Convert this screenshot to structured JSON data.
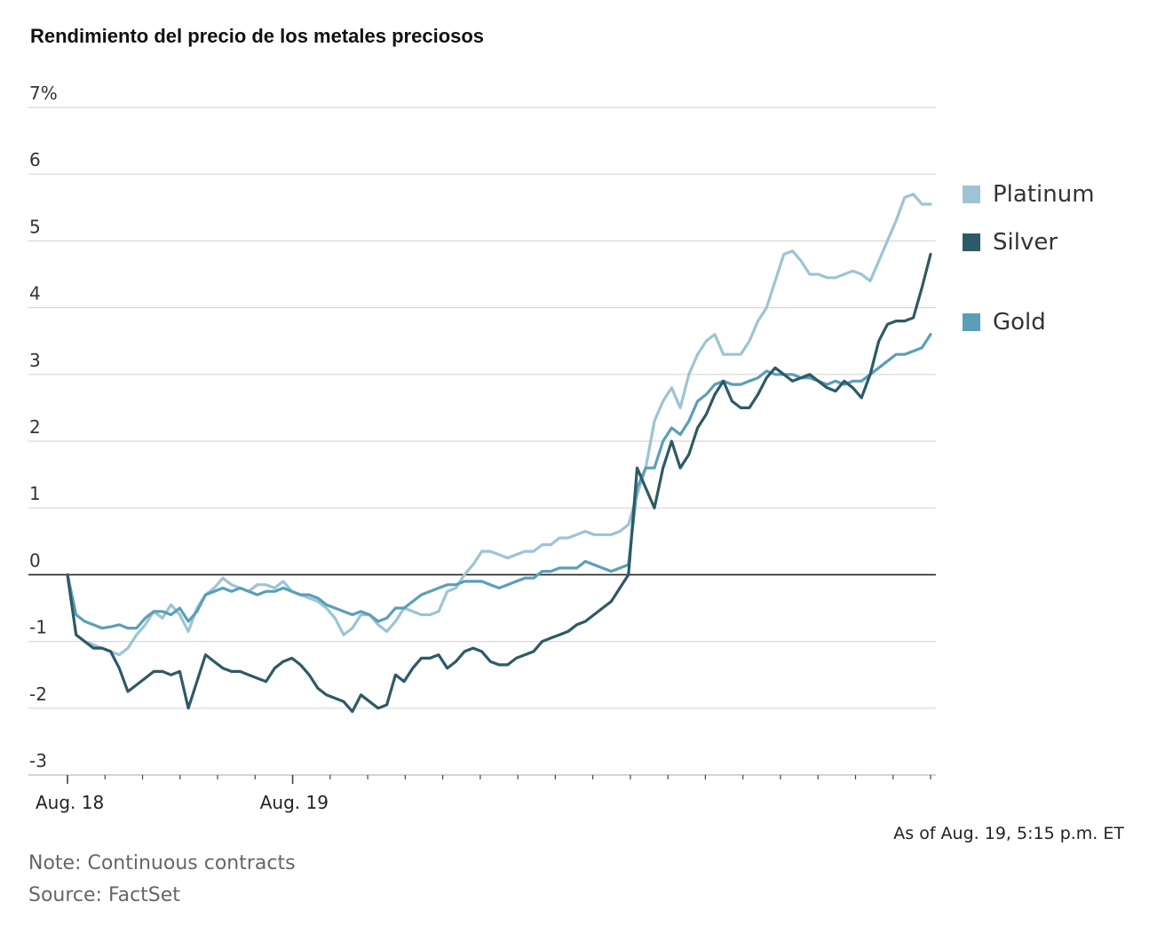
{
  "chart_data": {
    "type": "line",
    "title": "Rendimiento del precio de los metales preciosos",
    "unit": "%",
    "ylim": [
      -3,
      7
    ],
    "yticks": [
      7,
      6,
      5,
      4,
      3,
      2,
      1,
      0,
      -1,
      -2,
      -3
    ],
    "ytick_labels": [
      "7%",
      "6",
      "5",
      "4",
      "3",
      "2",
      "1",
      "0",
      "-1",
      "-2",
      "-3"
    ],
    "xticks": [
      "Aug. 18",
      "Aug. 19"
    ],
    "x_range": [
      0,
      100
    ],
    "x_tick_positions": [
      0,
      26
    ],
    "grid": true,
    "legend_position": "right",
    "series": [
      {
        "name": "Platinum",
        "color": "#9cc4d4",
        "x": [
          0,
          1,
          2,
          3,
          4,
          5,
          6,
          7,
          8,
          9,
          10,
          11,
          12,
          13,
          14,
          15,
          16,
          17,
          18,
          19,
          20,
          21,
          22,
          23,
          24,
          25,
          26,
          27,
          28,
          29,
          30,
          31,
          32,
          33,
          34,
          35,
          36,
          37,
          38,
          39,
          40,
          41,
          42,
          43,
          44,
          45,
          46,
          47,
          48,
          49,
          50,
          51,
          52,
          53,
          54,
          55,
          56,
          57,
          58,
          59,
          60,
          61,
          62,
          63,
          64,
          65,
          66,
          67,
          68,
          69,
          70,
          71,
          72,
          73,
          74,
          75,
          76,
          77,
          78,
          79,
          80,
          81,
          82,
          83,
          84,
          85,
          86,
          87,
          88,
          89,
          90,
          91,
          92,
          93,
          94,
          95,
          96,
          97,
          98,
          99,
          100
        ],
        "values": [
          0.0,
          -0.9,
          -1.0,
          -1.05,
          -1.1,
          -1.15,
          -1.2,
          -1.1,
          -0.9,
          -0.75,
          -0.55,
          -0.65,
          -0.45,
          -0.6,
          -0.85,
          -0.5,
          -0.3,
          -0.2,
          -0.05,
          -0.15,
          -0.2,
          -0.25,
          -0.15,
          -0.15,
          -0.2,
          -0.1,
          -0.25,
          -0.3,
          -0.35,
          -0.4,
          -0.5,
          -0.65,
          -0.9,
          -0.8,
          -0.6,
          -0.6,
          -0.75,
          -0.85,
          -0.7,
          -0.5,
          -0.55,
          -0.6,
          -0.6,
          -0.55,
          -0.25,
          -0.2,
          0.0,
          0.15,
          0.35,
          0.35,
          0.3,
          0.25,
          0.3,
          0.35,
          0.35,
          0.45,
          0.45,
          0.55,
          0.55,
          0.6,
          0.65,
          0.6,
          0.6,
          0.6,
          0.65,
          0.75,
          1.2,
          1.6,
          2.3,
          2.6,
          2.8,
          2.5,
          3.0,
          3.3,
          3.5,
          3.6,
          3.3,
          3.3,
          3.3,
          3.5,
          3.8,
          4.0,
          4.4,
          4.8,
          4.85,
          4.7,
          4.5,
          4.5,
          4.45,
          4.45,
          4.5,
          4.55,
          4.5,
          4.4,
          4.7,
          5.0,
          5.3,
          5.65,
          5.7,
          5.55,
          5.55
        ],
        "dashed_segment": [
          30,
          32
        ]
      },
      {
        "name": "Silver",
        "color": "#2e5a66",
        "x": [
          0,
          1,
          2,
          3,
          4,
          5,
          6,
          7,
          8,
          9,
          10,
          11,
          12,
          13,
          14,
          15,
          16,
          17,
          18,
          19,
          20,
          21,
          22,
          23,
          24,
          25,
          26,
          27,
          28,
          29,
          30,
          31,
          32,
          33,
          34,
          35,
          36,
          37,
          38,
          39,
          40,
          41,
          42,
          43,
          44,
          45,
          46,
          47,
          48,
          49,
          50,
          51,
          52,
          53,
          54,
          55,
          56,
          57,
          58,
          59,
          60,
          61,
          62,
          63,
          64,
          65,
          66,
          67,
          68,
          69,
          70,
          71,
          72,
          73,
          74,
          75,
          76,
          77,
          78,
          79,
          80,
          81,
          82,
          83,
          84,
          85,
          86,
          87,
          88,
          89,
          90,
          91,
          92,
          93,
          94,
          95,
          96,
          97,
          98,
          99,
          100
        ],
        "values": [
          0.0,
          -0.9,
          -1.0,
          -1.1,
          -1.1,
          -1.15,
          -1.4,
          -1.75,
          -1.65,
          -1.55,
          -1.45,
          -1.45,
          -1.5,
          -1.45,
          -2.0,
          -1.6,
          -1.2,
          -1.3,
          -1.4,
          -1.45,
          -1.45,
          -1.5,
          -1.55,
          -1.6,
          -1.4,
          -1.3,
          -1.25,
          -1.35,
          -1.5,
          -1.7,
          -1.8,
          -1.85,
          -1.9,
          -2.05,
          -1.8,
          -1.9,
          -2.0,
          -1.95,
          -1.5,
          -1.6,
          -1.4,
          -1.25,
          -1.25,
          -1.2,
          -1.4,
          -1.3,
          -1.15,
          -1.1,
          -1.15,
          -1.3,
          -1.35,
          -1.35,
          -1.25,
          -1.2,
          -1.15,
          -1.0,
          -0.95,
          -0.9,
          -0.85,
          -0.75,
          -0.7,
          -0.6,
          -0.5,
          -0.4,
          -0.2,
          0.0,
          1.6,
          1.3,
          1.0,
          1.6,
          2.0,
          1.6,
          1.8,
          2.2,
          2.4,
          2.7,
          2.9,
          2.6,
          2.5,
          2.5,
          2.7,
          2.95,
          3.1,
          3.0,
          2.9,
          2.95,
          3.0,
          2.9,
          2.8,
          2.75,
          2.9,
          2.8,
          2.65,
          3.0,
          3.5,
          3.75,
          3.8,
          3.8,
          3.85,
          4.3,
          4.8
        ],
        "dashed_segment": null
      },
      {
        "name": "Gold",
        "color": "#5a9fb8",
        "x": [
          0,
          1,
          2,
          3,
          4,
          5,
          6,
          7,
          8,
          9,
          10,
          11,
          12,
          13,
          14,
          15,
          16,
          17,
          18,
          19,
          20,
          21,
          22,
          23,
          24,
          25,
          26,
          27,
          28,
          29,
          30,
          31,
          32,
          33,
          34,
          35,
          36,
          37,
          38,
          39,
          40,
          41,
          42,
          43,
          44,
          45,
          46,
          47,
          48,
          49,
          50,
          51,
          52,
          53,
          54,
          55,
          56,
          57,
          58,
          59,
          60,
          61,
          62,
          63,
          64,
          65,
          66,
          67,
          68,
          69,
          70,
          71,
          72,
          73,
          74,
          75,
          76,
          77,
          78,
          79,
          80,
          81,
          82,
          83,
          84,
          85,
          86,
          87,
          88,
          89,
          90,
          91,
          92,
          93,
          94,
          95,
          96,
          97,
          98,
          99,
          100
        ],
        "values": [
          0.0,
          -0.6,
          -0.7,
          -0.75,
          -0.8,
          -0.78,
          -0.75,
          -0.8,
          -0.8,
          -0.65,
          -0.55,
          -0.55,
          -0.6,
          -0.5,
          -0.7,
          -0.55,
          -0.3,
          -0.25,
          -0.2,
          -0.25,
          -0.2,
          -0.25,
          -0.3,
          -0.25,
          -0.25,
          -0.2,
          -0.25,
          -0.3,
          -0.3,
          -0.35,
          -0.45,
          -0.5,
          -0.55,
          -0.6,
          -0.55,
          -0.6,
          -0.7,
          -0.65,
          -0.5,
          -0.5,
          -0.4,
          -0.3,
          -0.25,
          -0.2,
          -0.15,
          -0.15,
          -0.1,
          -0.1,
          -0.1,
          -0.15,
          -0.2,
          -0.15,
          -0.1,
          -0.05,
          -0.05,
          0.05,
          0.05,
          0.1,
          0.1,
          0.1,
          0.2,
          0.15,
          0.1,
          0.05,
          0.1,
          0.15,
          1.3,
          1.6,
          1.6,
          2.0,
          2.2,
          2.1,
          2.3,
          2.6,
          2.7,
          2.85,
          2.9,
          2.85,
          2.85,
          2.9,
          2.95,
          3.05,
          3.0,
          3.0,
          3.0,
          2.95,
          2.95,
          2.9,
          2.85,
          2.9,
          2.85,
          2.9,
          2.9,
          3.0,
          3.1,
          3.2,
          3.3,
          3.3,
          3.35,
          3.4,
          3.6
        ],
        "dashed_segment": null
      }
    ]
  },
  "legend": {
    "items": [
      {
        "label": "Platinum",
        "color": "#9cc4d4"
      },
      {
        "label": "Silver",
        "color": "#2e5a66"
      },
      {
        "label": "Gold",
        "color": "#5a9fb8"
      }
    ]
  },
  "footer": {
    "as_of": "As of Aug. 19, 5:15 p.m. ET",
    "note": "Note: Continuous contracts",
    "source": "Source: FactSet"
  }
}
